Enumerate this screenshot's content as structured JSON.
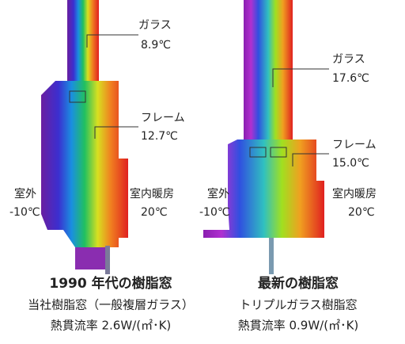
{
  "panels": [
    {
      "glass_label": "ガラス",
      "glass_temp": "8.9℃",
      "frame_label": "フレーム",
      "frame_temp": "12.7℃",
      "outdoor_label": "室外",
      "outdoor_temp": "-10℃",
      "indoor_label": "室内暖房",
      "indoor_temp": "20℃",
      "title": "1990 年代の樹脂窓",
      "subtitle": "当社樹脂窓（一般複層ガラス）",
      "u_value": "熱貫流率 2.6W/(㎡･K)"
    },
    {
      "glass_label": "ガラス",
      "glass_temp": "17.6℃",
      "frame_label": "フレーム",
      "frame_temp": "15.0℃",
      "outdoor_label": "室外",
      "outdoor_temp": "-10℃",
      "indoor_label": "室内暖房",
      "indoor_temp": "20℃",
      "title": "最新の樹脂窓",
      "subtitle": "トリプルガラス樹脂窓",
      "u_value": "熱貫流率 0.9W/(㎡･K)"
    }
  ]
}
